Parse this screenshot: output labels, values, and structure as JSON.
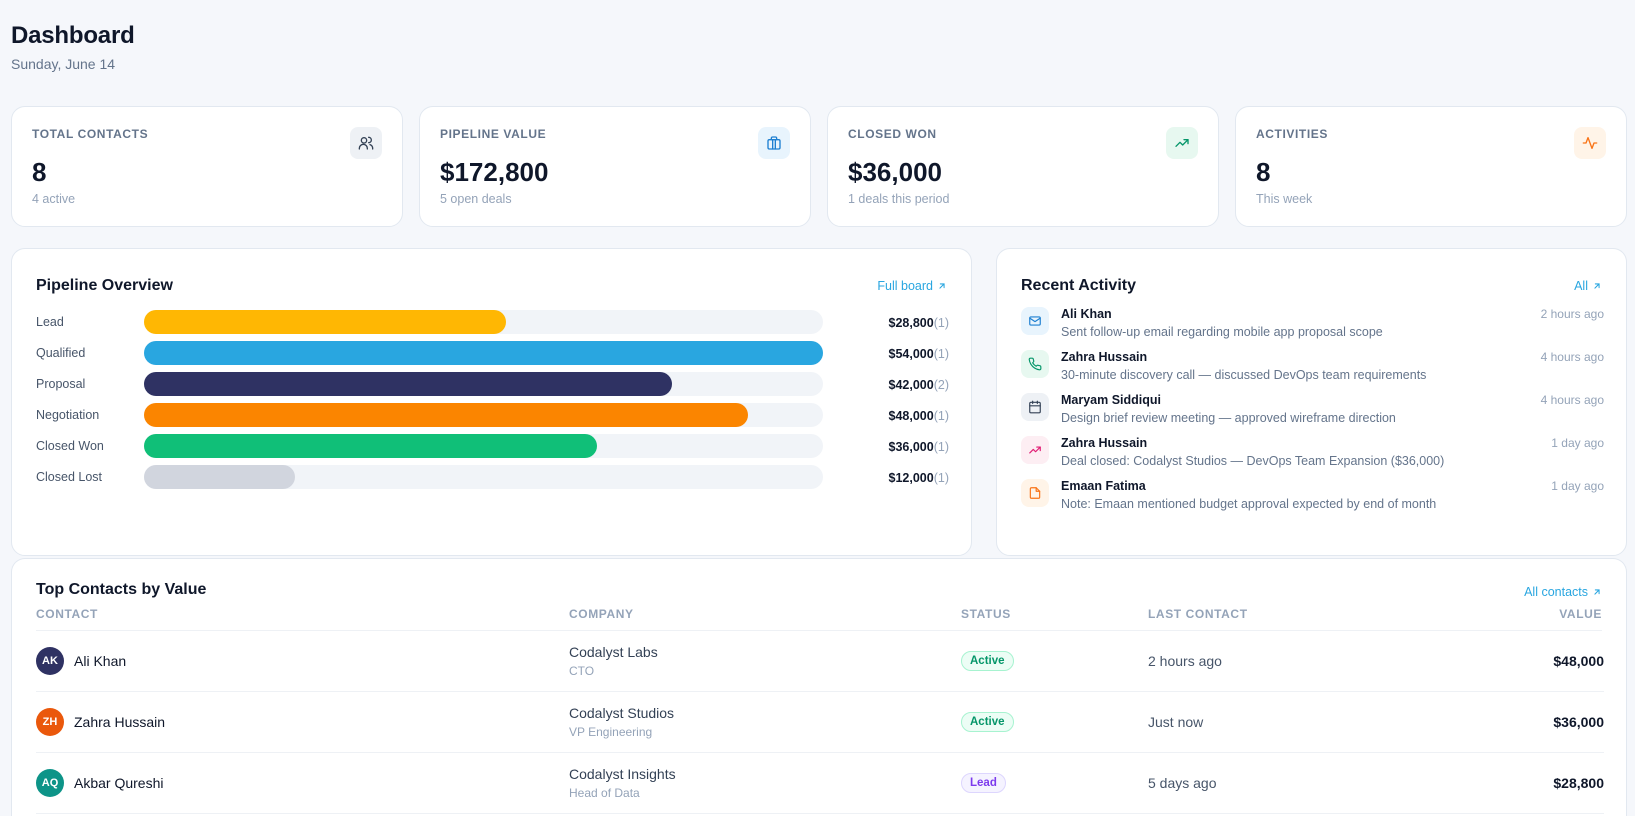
{
  "header": {
    "title": "Dashboard",
    "date": "Sunday, June 14"
  },
  "stats": [
    {
      "label": "TOTAL CONTACTS",
      "value": "8",
      "sub": "4 active",
      "icon": "users-icon",
      "icon_bg": "#eef1f5",
      "icon_color": "#334155"
    },
    {
      "label": "PIPELINE VALUE",
      "value": "$172,800",
      "sub": "5 open deals",
      "icon": "briefcase-icon",
      "icon_bg": "#e8f4fd",
      "icon_color": "#1d7fd1"
    },
    {
      "label": "CLOSED WON",
      "value": "$36,000",
      "sub": "1 deals this period",
      "icon": "trending-up-icon",
      "icon_bg": "#e7f8f0",
      "icon_color": "#059669"
    },
    {
      "label": "ACTIVITIES",
      "value": "8",
      "sub": "This week",
      "icon": "activity-icon",
      "icon_bg": "#fff4e8",
      "icon_color": "#f97316"
    }
  ],
  "pipeline": {
    "title": "Pipeline Overview",
    "link": "Full board",
    "stages": [
      {
        "name": "Lead",
        "amount": "$28,800",
        "count": "(1)",
        "fill": 0.533,
        "color": "#ffb703"
      },
      {
        "name": "Qualified",
        "amount": "$54,000",
        "count": "(1)",
        "fill": 1.0,
        "color": "#29a6e0"
      },
      {
        "name": "Proposal",
        "amount": "$42,000",
        "count": "(2)",
        "fill": 0.778,
        "color": "#2f3263"
      },
      {
        "name": "Negotiation",
        "amount": "$48,000",
        "count": "(1)",
        "fill": 0.889,
        "color": "#fb8500"
      },
      {
        "name": "Closed Won",
        "amount": "$36,000",
        "count": "(1)",
        "fill": 0.667,
        "color": "#10bf78"
      },
      {
        "name": "Closed Lost",
        "amount": "$12,000",
        "count": "(1)",
        "fill": 0.222,
        "color": "#d1d5de"
      }
    ]
  },
  "activity": {
    "title": "Recent Activity",
    "link": "All",
    "items": [
      {
        "name": "Ali Khan",
        "desc": "Sent follow-up email regarding mobile app proposal scope",
        "time": "2 hours ago",
        "icon": "mail-icon",
        "bg": "#e8f4fd",
        "color": "#1d7fd1"
      },
      {
        "name": "Zahra Hussain",
        "desc": "30-minute discovery call — discussed DevOps team requirements",
        "time": "4 hours ago",
        "icon": "phone-icon",
        "bg": "#e7f8f0",
        "color": "#059669"
      },
      {
        "name": "Maryam Siddiqui",
        "desc": "Design brief review meeting — approved wireframe direction",
        "time": "4 hours ago",
        "icon": "calendar-icon",
        "bg": "#eef1f5",
        "color": "#334155"
      },
      {
        "name": "Zahra Hussain",
        "desc": "Deal closed: Codalyst Studios — DevOps Team Expansion ($36,000)",
        "time": "1 day ago",
        "icon": "trending-up-icon",
        "bg": "#fdeef3",
        "color": "#e11d74"
      },
      {
        "name": "Emaan Fatima",
        "desc": "Note: Emaan mentioned budget approval expected by end of month",
        "time": "1 day ago",
        "icon": "note-icon",
        "bg": "#fff4e8",
        "color": "#f97316"
      }
    ]
  },
  "contacts": {
    "title": "Top Contacts by Value",
    "link": "All contacts",
    "columns": {
      "contact": "CONTACT",
      "company": "COMPANY",
      "status": "STATUS",
      "last": "LAST CONTACT",
      "value": "VALUE"
    },
    "rows": [
      {
        "initials": "AK",
        "name": "Ali Khan",
        "company": "Codalyst Labs",
        "role": "CTO",
        "status": "Active",
        "status_kind": "active",
        "last": "2 hours ago",
        "value": "$48,000",
        "avatar_color": "#2f3263"
      },
      {
        "initials": "ZH",
        "name": "Zahra Hussain",
        "company": "Codalyst Studios",
        "role": "VP Engineering",
        "status": "Active",
        "status_kind": "active",
        "last": "Just now",
        "value": "$36,000",
        "avatar_color": "#ea580c"
      },
      {
        "initials": "AQ",
        "name": "Akbar Qureshi",
        "company": "Codalyst Insights",
        "role": "Head of Data",
        "status": "Lead",
        "status_kind": "lead",
        "last": "5 days ago",
        "value": "$28,800",
        "avatar_color": "#0d9488"
      }
    ]
  }
}
